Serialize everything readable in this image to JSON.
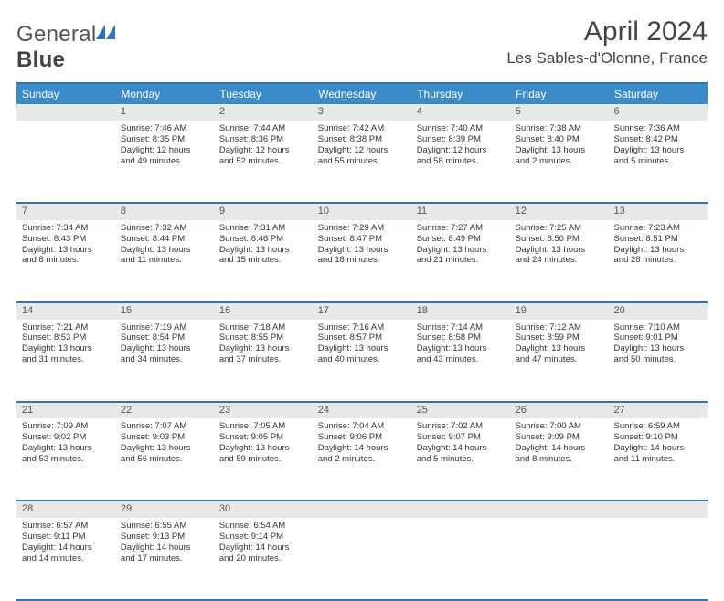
{
  "brand": {
    "part1": "General",
    "part2": "Blue"
  },
  "title": "April 2024",
  "location": "Les Sables-d'Olonne, France",
  "colors": {
    "header_bg": "#3a8bc8",
    "header_text": "#ffffff",
    "border": "#2e77b4",
    "daynum_bg": "#e8e8e8",
    "text": "#333333",
    "logo_blue": "#2e77b4"
  },
  "weekdays": [
    "Sunday",
    "Monday",
    "Tuesday",
    "Wednesday",
    "Thursday",
    "Friday",
    "Saturday"
  ],
  "weeks": [
    {
      "nums": [
        "",
        "1",
        "2",
        "3",
        "4",
        "5",
        "6"
      ],
      "cells": [
        null,
        {
          "sunrise": "Sunrise: 7:46 AM",
          "sunset": "Sunset: 8:35 PM",
          "day1": "Daylight: 12 hours",
          "day2": "and 49 minutes."
        },
        {
          "sunrise": "Sunrise: 7:44 AM",
          "sunset": "Sunset: 8:36 PM",
          "day1": "Daylight: 12 hours",
          "day2": "and 52 minutes."
        },
        {
          "sunrise": "Sunrise: 7:42 AM",
          "sunset": "Sunset: 8:38 PM",
          "day1": "Daylight: 12 hours",
          "day2": "and 55 minutes."
        },
        {
          "sunrise": "Sunrise: 7:40 AM",
          "sunset": "Sunset: 8:39 PM",
          "day1": "Daylight: 12 hours",
          "day2": "and 58 minutes."
        },
        {
          "sunrise": "Sunrise: 7:38 AM",
          "sunset": "Sunset: 8:40 PM",
          "day1": "Daylight: 13 hours",
          "day2": "and 2 minutes."
        },
        {
          "sunrise": "Sunrise: 7:36 AM",
          "sunset": "Sunset: 8:42 PM",
          "day1": "Daylight: 13 hours",
          "day2": "and 5 minutes."
        }
      ]
    },
    {
      "nums": [
        "7",
        "8",
        "9",
        "10",
        "11",
        "12",
        "13"
      ],
      "cells": [
        {
          "sunrise": "Sunrise: 7:34 AM",
          "sunset": "Sunset: 8:43 PM",
          "day1": "Daylight: 13 hours",
          "day2": "and 8 minutes."
        },
        {
          "sunrise": "Sunrise: 7:32 AM",
          "sunset": "Sunset: 8:44 PM",
          "day1": "Daylight: 13 hours",
          "day2": "and 11 minutes."
        },
        {
          "sunrise": "Sunrise: 7:31 AM",
          "sunset": "Sunset: 8:46 PM",
          "day1": "Daylight: 13 hours",
          "day2": "and 15 minutes."
        },
        {
          "sunrise": "Sunrise: 7:29 AM",
          "sunset": "Sunset: 8:47 PM",
          "day1": "Daylight: 13 hours",
          "day2": "and 18 minutes."
        },
        {
          "sunrise": "Sunrise: 7:27 AM",
          "sunset": "Sunset: 8:49 PM",
          "day1": "Daylight: 13 hours",
          "day2": "and 21 minutes."
        },
        {
          "sunrise": "Sunrise: 7:25 AM",
          "sunset": "Sunset: 8:50 PM",
          "day1": "Daylight: 13 hours",
          "day2": "and 24 minutes."
        },
        {
          "sunrise": "Sunrise: 7:23 AM",
          "sunset": "Sunset: 8:51 PM",
          "day1": "Daylight: 13 hours",
          "day2": "and 28 minutes."
        }
      ]
    },
    {
      "nums": [
        "14",
        "15",
        "16",
        "17",
        "18",
        "19",
        "20"
      ],
      "cells": [
        {
          "sunrise": "Sunrise: 7:21 AM",
          "sunset": "Sunset: 8:53 PM",
          "day1": "Daylight: 13 hours",
          "day2": "and 31 minutes."
        },
        {
          "sunrise": "Sunrise: 7:19 AM",
          "sunset": "Sunset: 8:54 PM",
          "day1": "Daylight: 13 hours",
          "day2": "and 34 minutes."
        },
        {
          "sunrise": "Sunrise: 7:18 AM",
          "sunset": "Sunset: 8:55 PM",
          "day1": "Daylight: 13 hours",
          "day2": "and 37 minutes."
        },
        {
          "sunrise": "Sunrise: 7:16 AM",
          "sunset": "Sunset: 8:57 PM",
          "day1": "Daylight: 13 hours",
          "day2": "and 40 minutes."
        },
        {
          "sunrise": "Sunrise: 7:14 AM",
          "sunset": "Sunset: 8:58 PM",
          "day1": "Daylight: 13 hours",
          "day2": "and 43 minutes."
        },
        {
          "sunrise": "Sunrise: 7:12 AM",
          "sunset": "Sunset: 8:59 PM",
          "day1": "Daylight: 13 hours",
          "day2": "and 47 minutes."
        },
        {
          "sunrise": "Sunrise: 7:10 AM",
          "sunset": "Sunset: 9:01 PM",
          "day1": "Daylight: 13 hours",
          "day2": "and 50 minutes."
        }
      ]
    },
    {
      "nums": [
        "21",
        "22",
        "23",
        "24",
        "25",
        "26",
        "27"
      ],
      "cells": [
        {
          "sunrise": "Sunrise: 7:09 AM",
          "sunset": "Sunset: 9:02 PM",
          "day1": "Daylight: 13 hours",
          "day2": "and 53 minutes."
        },
        {
          "sunrise": "Sunrise: 7:07 AM",
          "sunset": "Sunset: 9:03 PM",
          "day1": "Daylight: 13 hours",
          "day2": "and 56 minutes."
        },
        {
          "sunrise": "Sunrise: 7:05 AM",
          "sunset": "Sunset: 9:05 PM",
          "day1": "Daylight: 13 hours",
          "day2": "and 59 minutes."
        },
        {
          "sunrise": "Sunrise: 7:04 AM",
          "sunset": "Sunset: 9:06 PM",
          "day1": "Daylight: 14 hours",
          "day2": "and 2 minutes."
        },
        {
          "sunrise": "Sunrise: 7:02 AM",
          "sunset": "Sunset: 9:07 PM",
          "day1": "Daylight: 14 hours",
          "day2": "and 5 minutes."
        },
        {
          "sunrise": "Sunrise: 7:00 AM",
          "sunset": "Sunset: 9:09 PM",
          "day1": "Daylight: 14 hours",
          "day2": "and 8 minutes."
        },
        {
          "sunrise": "Sunrise: 6:59 AM",
          "sunset": "Sunset: 9:10 PM",
          "day1": "Daylight: 14 hours",
          "day2": "and 11 minutes."
        }
      ]
    },
    {
      "nums": [
        "28",
        "29",
        "30",
        "",
        "",
        "",
        ""
      ],
      "cells": [
        {
          "sunrise": "Sunrise: 6:57 AM",
          "sunset": "Sunset: 9:11 PM",
          "day1": "Daylight: 14 hours",
          "day2": "and 14 minutes."
        },
        {
          "sunrise": "Sunrise: 6:55 AM",
          "sunset": "Sunset: 9:13 PM",
          "day1": "Daylight: 14 hours",
          "day2": "and 17 minutes."
        },
        {
          "sunrise": "Sunrise: 6:54 AM",
          "sunset": "Sunset: 9:14 PM",
          "day1": "Daylight: 14 hours",
          "day2": "and 20 minutes."
        },
        null,
        null,
        null,
        null
      ]
    }
  ]
}
